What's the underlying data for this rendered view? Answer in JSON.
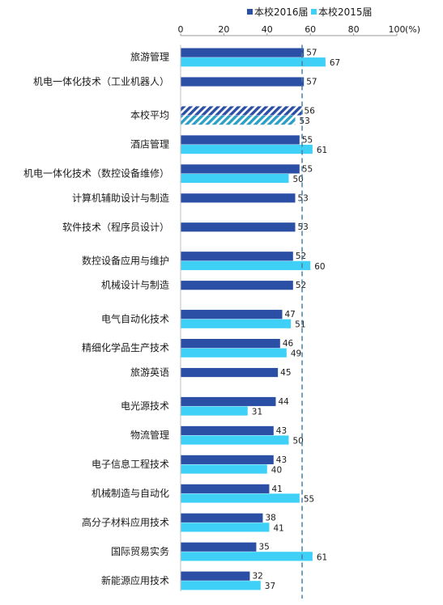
{
  "chart_data": {
    "type": "bar",
    "orientation": "horizontal",
    "unit": "(%)",
    "xlim": [
      0,
      100
    ],
    "xticks": [
      0,
      20,
      40,
      60,
      80,
      100
    ],
    "grid": false,
    "legend_position": "top-right",
    "reference_line": {
      "value": 56,
      "style": "dashed",
      "color": "#4a7fa6"
    },
    "categories": [
      "旅游管理",
      "机电一体化技术（工业机器人）",
      "本校平均",
      "酒店管理",
      "机电一体化技术（数控设备维修）",
      "计算机辅助设计与制造",
      "软件技术（程序员设计）",
      "数控设备应用与维护",
      "机械设计与制造",
      "电气自动化技术",
      "精细化学品生产技术",
      "旅游英语",
      "电光源技术",
      "物流管理",
      "电子信息工程技术",
      "机械制造与自动化",
      "高分子材料应用技术",
      "国际贸易实务",
      "新能源应用技术"
    ],
    "highlight_category": "本校平均",
    "series": [
      {
        "name": "本校2016届",
        "color": "#2a4fa5",
        "values": [
          57,
          57,
          56,
          55,
          55,
          53,
          53,
          52,
          52,
          47,
          46,
          45,
          44,
          43,
          43,
          41,
          38,
          35,
          32
        ]
      },
      {
        "name": "本校2015届",
        "color": "#3fd0f7",
        "values": [
          67,
          null,
          53,
          61,
          50,
          null,
          null,
          60,
          null,
          51,
          49,
          null,
          31,
          50,
          40,
          55,
          41,
          61,
          37
        ]
      }
    ]
  }
}
